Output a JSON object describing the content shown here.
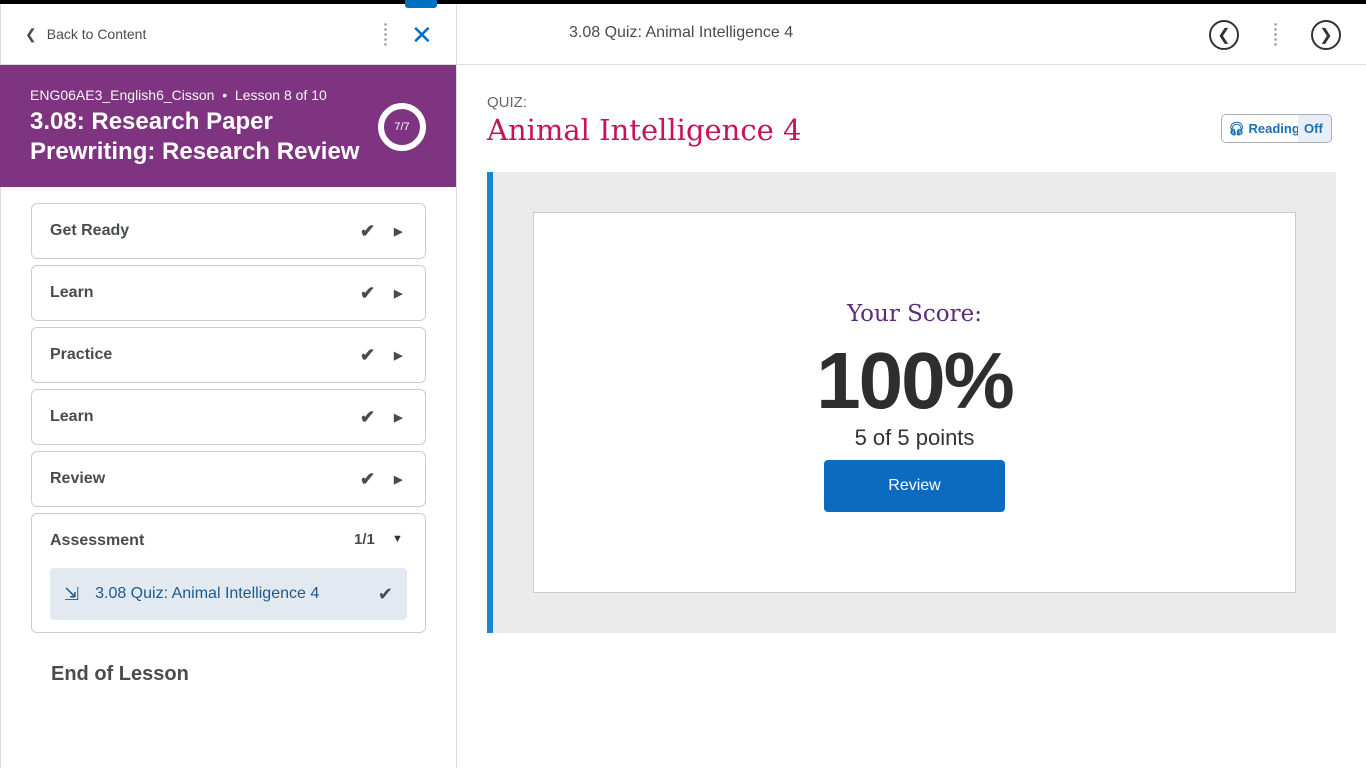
{
  "sidebar": {
    "back_label": "Back to Content",
    "course": "ENG06AE3_English6_Cisson",
    "lesson_position": "Lesson 8 of 10",
    "lesson_title": "3.08: Research Paper Prewriting: Research Review",
    "progress": "7/7",
    "units": [
      {
        "label": "Get Ready"
      },
      {
        "label": "Learn"
      },
      {
        "label": "Practice"
      },
      {
        "label": "Learn"
      },
      {
        "label": "Review"
      }
    ],
    "assessment": {
      "label": "Assessment",
      "count": "1/1",
      "item": "3.08 Quiz: Animal Intelligence 4"
    },
    "end_label": "End of Lesson",
    "brand_color": "#7f3481"
  },
  "header": {
    "title": "3.08 Quiz: Animal Intelligence 4"
  },
  "quiz": {
    "label": "QUIZ:",
    "title": "Animal Intelligence 4",
    "reading_label": "Reading",
    "reading_state": "Off",
    "score_label": "Your Score:",
    "score": "100%",
    "points": "5 of 5 points",
    "review_label": "Review"
  }
}
